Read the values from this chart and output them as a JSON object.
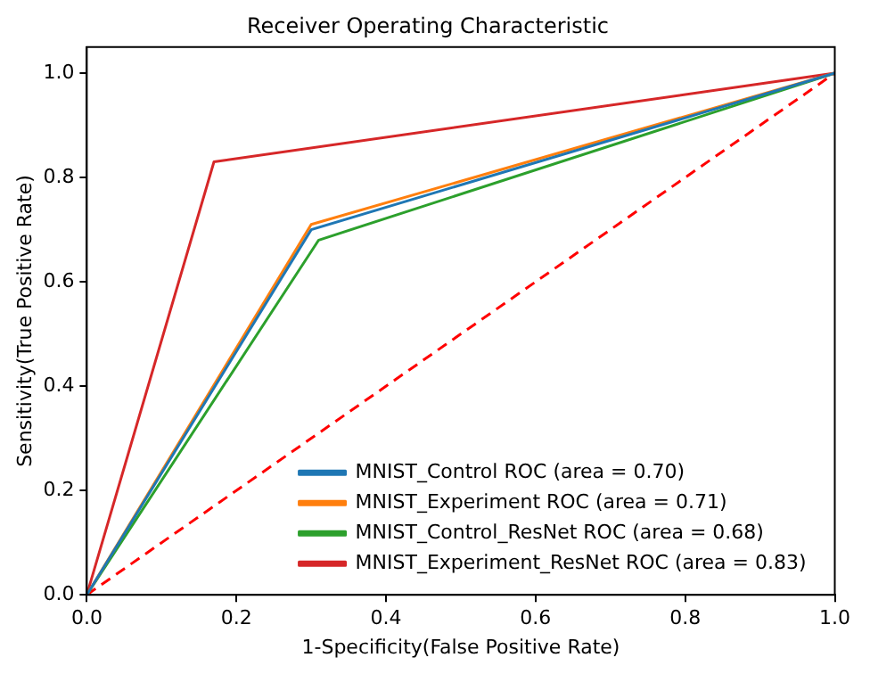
{
  "chart_data": {
    "type": "line",
    "title": "Receiver Operating Characteristic",
    "xlabel": "1-Specificity(False Positive Rate)",
    "ylabel": "Sensitivity(True Positive Rate)",
    "xlim": [
      0,
      1
    ],
    "ylim": [
      0,
      1.05
    ],
    "xticks": [
      {
        "value": 0,
        "label": "0.0"
      },
      {
        "value": 0.2,
        "label": "0.2"
      },
      {
        "value": 0.4,
        "label": "0.4"
      },
      {
        "value": 0.6,
        "label": "0.6"
      },
      {
        "value": 0.8,
        "label": "0.8"
      },
      {
        "value": 1,
        "label": "1.0"
      }
    ],
    "yticks": [
      {
        "value": 0,
        "label": "0.0"
      },
      {
        "value": 0.2,
        "label": "0.2"
      },
      {
        "value": 0.4,
        "label": "0.4"
      },
      {
        "value": 0.6,
        "label": "0.6"
      },
      {
        "value": 0.8,
        "label": "0.8"
      },
      {
        "value": 1,
        "label": "1.0"
      }
    ],
    "legend": "bottom right",
    "grid": false,
    "series": [
      {
        "name": "MNIST_Control ROC (area = 0.70)",
        "color": "#1f77b4",
        "x": [
          0,
          0.3,
          1
        ],
        "values": [
          0,
          0.7,
          1
        ]
      },
      {
        "name": "MNIST_Experiment ROC (area = 0.71)",
        "color": "#ff7f0e",
        "x": [
          0,
          0.3,
          1
        ],
        "values": [
          0,
          0.71,
          1
        ]
      },
      {
        "name": "MNIST_Control_ResNet ROC (area = 0.68)",
        "color": "#2ca02c",
        "x": [
          0,
          0.31,
          1
        ],
        "values": [
          0,
          0.68,
          1
        ]
      },
      {
        "name": "MNIST_Experiment_ResNet ROC (area = 0.83)",
        "color": "#d62728",
        "x": [
          0,
          0.17,
          1
        ],
        "values": [
          0,
          0.83,
          1
        ]
      },
      {
        "color": "#ff0000",
        "line_style": "dashed",
        "x": [
          0,
          1
        ],
        "values": [
          0,
          1
        ]
      }
    ]
  }
}
